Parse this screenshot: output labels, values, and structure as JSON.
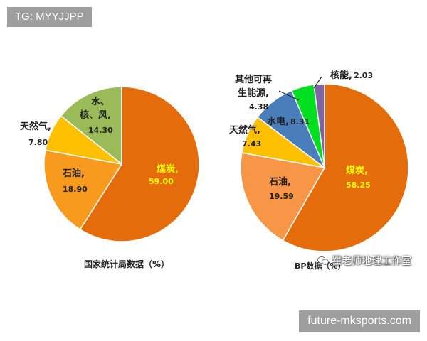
{
  "watermarks": {
    "top_left": "TG: MYYJJPP",
    "bottom_right": "future-mksports.com",
    "wechat_label": "瞿老师地理工作室"
  },
  "chart_data": [
    {
      "type": "pie",
      "title": "国家统计局数据（%）",
      "slices": [
        {
          "label": "煤炭,",
          "value": 59.0,
          "value_text": "59.00",
          "color": "#E46C0A"
        },
        {
          "label": "石油,",
          "value": 18.9,
          "value_text": "18.90",
          "color": "#F79A1E"
        },
        {
          "label": "天然气,",
          "value": 7.8,
          "value_text": "7.80",
          "color": "#FFC000"
        },
        {
          "label": "水、核、风,",
          "value": 14.3,
          "value_text": "14.30",
          "color": "#9BBB59"
        }
      ]
    },
    {
      "type": "pie",
      "title": "BP数据（%）",
      "slices": [
        {
          "label": "煤炭,",
          "value": 58.25,
          "value_text": "58.25",
          "color": "#E46C0A"
        },
        {
          "label": "石油,",
          "value": 19.59,
          "value_text": "19.59",
          "color": "#F79646"
        },
        {
          "label": "天然气,",
          "value": 7.43,
          "value_text": "7.43",
          "color": "#FFC000"
        },
        {
          "label": "水电,",
          "value": 8.31,
          "value_text": "8.31",
          "color": "#4A7EBB"
        },
        {
          "label": "其他可再生能源,",
          "value": 4.38,
          "value_text": "4.38",
          "color": "#00E020"
        },
        {
          "label": "核能,",
          "value": 2.03,
          "value_text": "2.03",
          "color": "#8064A2"
        }
      ]
    }
  ]
}
